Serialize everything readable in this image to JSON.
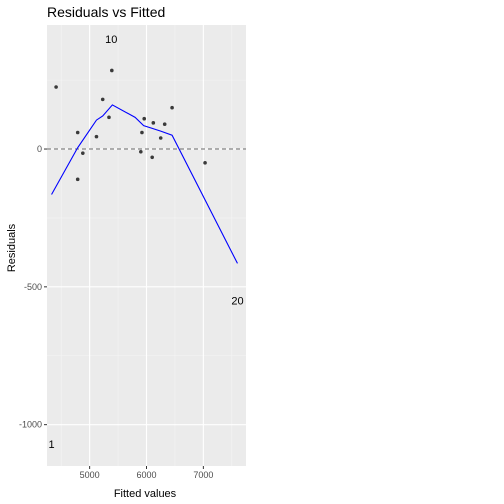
{
  "chart_data": {
    "type": "scatter",
    "title": "Residuals vs Fitted",
    "xlabel": "Fitted values",
    "ylabel": "Residuals",
    "xlim": [
      4250,
      7750
    ],
    "ylim": [
      -1150,
      450
    ],
    "x_ticks": [
      5000,
      6000,
      7000
    ],
    "y_ticks": [
      -1000,
      -500,
      0
    ],
    "x_tick_labels": [
      "5000",
      "6000",
      "7000"
    ],
    "y_tick_labels": [
      "-1000",
      "-500",
      "0"
    ],
    "grid": true,
    "reference_line": {
      "y": 0,
      "style": "dashed",
      "color": "#6b6b6b"
    },
    "points": [
      {
        "x": 4410,
        "y": 225
      },
      {
        "x": 4790,
        "y": 60
      },
      {
        "x": 4790,
        "y": -110
      },
      {
        "x": 4880,
        "y": -15
      },
      {
        "x": 5120,
        "y": 45
      },
      {
        "x": 5230,
        "y": 180
      },
      {
        "x": 5340,
        "y": 115
      },
      {
        "x": 5390,
        "y": 285
      },
      {
        "x": 5900,
        "y": -10
      },
      {
        "x": 5920,
        "y": 60
      },
      {
        "x": 5960,
        "y": 110
      },
      {
        "x": 6100,
        "y": -30
      },
      {
        "x": 6120,
        "y": 95
      },
      {
        "x": 6250,
        "y": 40
      },
      {
        "x": 6320,
        "y": 90
      },
      {
        "x": 6450,
        "y": 150
      },
      {
        "x": 7030,
        "y": -50
      }
    ],
    "labeled_points": [
      {
        "label": "10",
        "x": 5380,
        "y": 400
      },
      {
        "label": "20",
        "x": 7600,
        "y": -550
      },
      {
        "label": "1",
        "x": 4330,
        "y": -1070
      }
    ],
    "smooth_line": {
      "color": "#0000ff",
      "x": [
        4330,
        4790,
        5120,
        5230,
        5400,
        5800,
        5950,
        6250,
        6450,
        7600
      ],
      "y": [
        -165,
        5,
        105,
        120,
        160,
        115,
        85,
        65,
        50,
        -415
      ]
    },
    "colors": {
      "panel": "#ebebeb",
      "grid_major": "#ffffff",
      "points": "#3a3a3a",
      "smooth": "#0000ff"
    }
  }
}
